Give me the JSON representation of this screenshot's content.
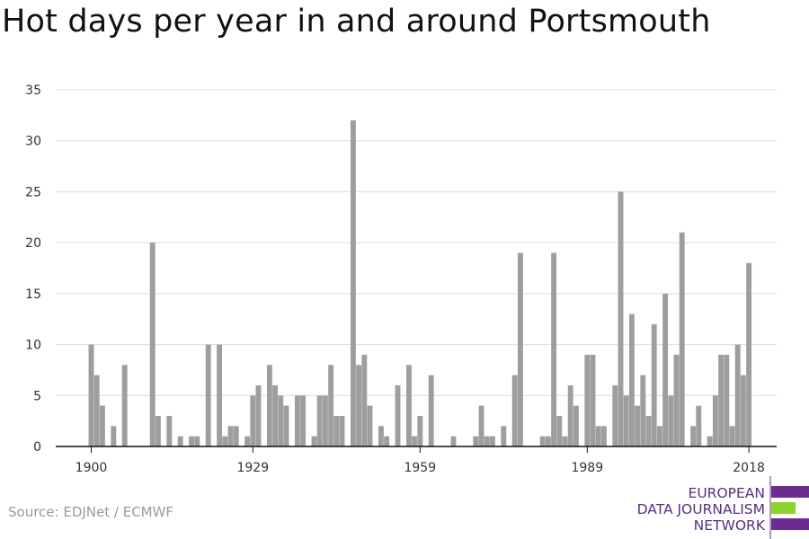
{
  "title": "Hot days per year in and around Portsmouth",
  "source": "Source: EDJNet / ECMWF",
  "logo": {
    "line1": "EUROPEAN",
    "line2": "DATA JOURNALISM",
    "line3": "NETWORK",
    "colors": {
      "purple": "#6a2c91",
      "green": "#8fd12f"
    }
  },
  "colors": {
    "bar": "#9e9e9e",
    "grid": "#dcdcdc",
    "axis": "#111111"
  },
  "chart_data": {
    "type": "bar",
    "title": "Hot days per year in and around Portsmouth",
    "xlabel": "",
    "ylabel": "",
    "ylim": [
      0,
      35
    ],
    "yticks": [
      0,
      5,
      10,
      15,
      20,
      25,
      30,
      35
    ],
    "xticks": [
      1900,
      1929,
      1959,
      1989,
      2018
    ],
    "grid": true,
    "x": [
      1900,
      1901,
      1902,
      1903,
      1904,
      1905,
      1906,
      1907,
      1908,
      1909,
      1910,
      1911,
      1912,
      1913,
      1914,
      1915,
      1916,
      1917,
      1918,
      1919,
      1920,
      1921,
      1922,
      1923,
      1924,
      1925,
      1926,
      1927,
      1928,
      1929,
      1930,
      1931,
      1932,
      1933,
      1934,
      1935,
      1936,
      1937,
      1938,
      1939,
      1940,
      1941,
      1942,
      1943,
      1944,
      1945,
      1946,
      1947,
      1948,
      1949,
      1950,
      1951,
      1952,
      1953,
      1954,
      1955,
      1956,
      1957,
      1958,
      1959,
      1960,
      1961,
      1962,
      1963,
      1964,
      1965,
      1966,
      1967,
      1968,
      1969,
      1970,
      1971,
      1972,
      1973,
      1974,
      1975,
      1976,
      1977,
      1978,
      1979,
      1980,
      1981,
      1982,
      1983,
      1984,
      1985,
      1986,
      1987,
      1988,
      1989,
      1990,
      1991,
      1992,
      1993,
      1994,
      1995,
      1996,
      1997,
      1998,
      1999,
      2000,
      2001,
      2002,
      2003,
      2004,
      2005,
      2006,
      2007,
      2008,
      2009,
      2010,
      2011,
      2012,
      2013,
      2014,
      2015,
      2016,
      2017,
      2018
    ],
    "values": [
      10,
      7,
      4,
      0,
      2,
      0,
      8,
      0,
      0,
      0,
      0,
      20,
      3,
      0,
      3,
      0,
      1,
      0,
      1,
      1,
      0,
      10,
      0,
      10,
      1,
      2,
      2,
      0,
      1,
      5,
      6,
      0,
      8,
      6,
      5,
      4,
      0,
      5,
      5,
      0,
      1,
      5,
      5,
      8,
      3,
      3,
      0,
      32,
      8,
      9,
      4,
      0,
      2,
      1,
      0,
      6,
      0,
      8,
      1,
      3,
      0,
      7,
      0,
      0,
      0,
      1,
      0,
      0,
      0,
      1,
      4,
      1,
      1,
      0,
      2,
      0,
      7,
      19,
      0,
      0,
      0,
      1,
      1,
      19,
      3,
      1,
      6,
      4,
      0,
      9,
      9,
      2,
      2,
      0,
      6,
      25,
      5,
      13,
      4,
      7,
      3,
      12,
      2,
      15,
      5,
      9,
      21,
      0,
      2,
      4,
      0,
      1,
      5,
      9,
      9,
      2,
      10,
      7,
      18
    ]
  }
}
